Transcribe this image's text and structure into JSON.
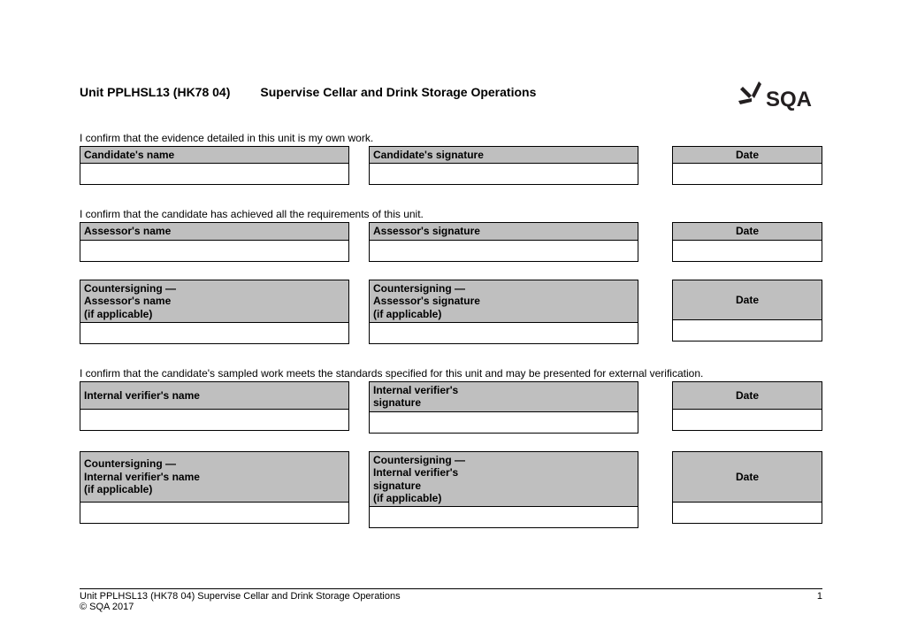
{
  "header": {
    "unit_code": "Unit PPLHSL13 (HK78 04)",
    "unit_title": "Supervise Cellar and Drink Storage Operations",
    "logo_text": "SQA"
  },
  "statements": {
    "s1": "I confirm that the evidence detailed in this unit is my own work.",
    "s2": "I confirm that the candidate has achieved all the requirements of this unit.",
    "s3": "I confirm that the candidate's sampled work meets the standards specified for this unit and may be presented for external verification."
  },
  "sections": {
    "candidate": {
      "name_label": "Candidate's name",
      "sig_label": "Candidate's signature",
      "date_label": "Date"
    },
    "assessor": {
      "name_label": "Assessor's name",
      "sig_label": "Assessor's signature",
      "date_label": "Date"
    },
    "countersign_assessor": {
      "name_label": "Countersigning —\nAssessor's name\n(if applicable)",
      "sig_label": "Countersigning —\nAssessor's signature\n(if applicable)",
      "date_label": "Date"
    },
    "iv": {
      "name_label": "Internal verifier's name",
      "sig_label": "Internal verifier's\nsignature",
      "date_label": "Date"
    },
    "countersign_iv": {
      "name_label": "Countersigning —\nInternal verifier's name\n(if applicable)",
      "sig_label": "Countersigning —\nInternal verifier's\nsignature\n(if applicable)",
      "date_label": "Date"
    }
  },
  "footer": {
    "left": "Unit PPLHSL13 (HK78 04) Supervise Cellar and Drink Storage Operations",
    "page": "1",
    "copyright": "© SQA 2017"
  },
  "colors": {
    "header_bg": "#bfbfbf",
    "border": "#000000",
    "page_bg": "#ffffff"
  }
}
